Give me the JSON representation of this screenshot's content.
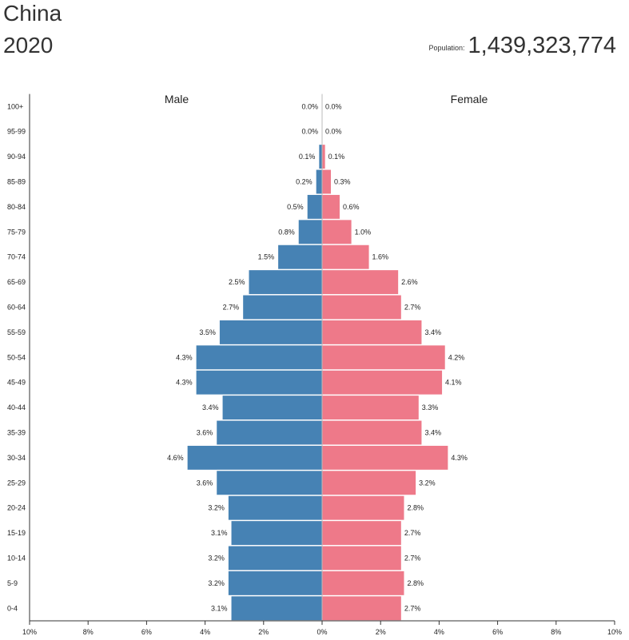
{
  "header": {
    "country": "China",
    "year": "2020",
    "population_label": "Population:",
    "population_value": "1,439,323,774"
  },
  "colors": {
    "male": "#4682b4",
    "female": "#ee7989",
    "axis": "#333333"
  },
  "chart_data": {
    "type": "bar",
    "orientation": "horizontal",
    "diverging": true,
    "categories": [
      "0-4",
      "5-9",
      "10-14",
      "15-19",
      "20-24",
      "25-29",
      "30-34",
      "35-39",
      "40-44",
      "45-49",
      "50-54",
      "55-59",
      "60-64",
      "65-69",
      "70-74",
      "75-79",
      "80-84",
      "85-89",
      "90-94",
      "95-99",
      "100+"
    ],
    "series": [
      {
        "name": "Male",
        "side": "left",
        "values": [
          3.1,
          3.2,
          3.2,
          3.1,
          3.2,
          3.6,
          4.6,
          3.6,
          3.4,
          4.3,
          4.3,
          3.5,
          2.7,
          2.5,
          1.5,
          0.8,
          0.5,
          0.2,
          0.1,
          0.0,
          0.0
        ],
        "labels": [
          "3.1%",
          "3.2%",
          "3.2%",
          "3.1%",
          "3.2%",
          "3.6%",
          "4.6%",
          "3.6%",
          "3.4%",
          "4.3%",
          "4.3%",
          "3.5%",
          "2.7%",
          "2.5%",
          "1.5%",
          "0.8%",
          "0.5%",
          "0.2%",
          "0.1%",
          "0.0%",
          "0.0%"
        ]
      },
      {
        "name": "Female",
        "side": "right",
        "values": [
          2.7,
          2.8,
          2.7,
          2.7,
          2.8,
          3.2,
          4.3,
          3.4,
          3.3,
          4.1,
          4.2,
          3.4,
          2.7,
          2.6,
          1.6,
          1.0,
          0.6,
          0.3,
          0.1,
          0.0,
          0.0
        ],
        "labels": [
          "2.7%",
          "2.8%",
          "2.7%",
          "2.7%",
          "2.8%",
          "3.2%",
          "4.3%",
          "3.4%",
          "3.3%",
          "4.1%",
          "4.2%",
          "3.4%",
          "2.7%",
          "2.6%",
          "1.6%",
          "1.0%",
          "0.6%",
          "0.3%",
          "0.1%",
          "0.0%",
          "0.0%"
        ]
      }
    ],
    "x_ticks": [
      -10,
      -8,
      -6,
      -4,
      -2,
      0,
      2,
      4,
      6,
      8,
      10
    ],
    "x_tick_labels": [
      "10%",
      "8%",
      "6%",
      "4%",
      "2%",
      "0%",
      "2%",
      "4%",
      "6%",
      "8%",
      "10%"
    ],
    "xlim": [
      -10,
      10
    ],
    "grid": false,
    "legend": "series names above each side"
  }
}
